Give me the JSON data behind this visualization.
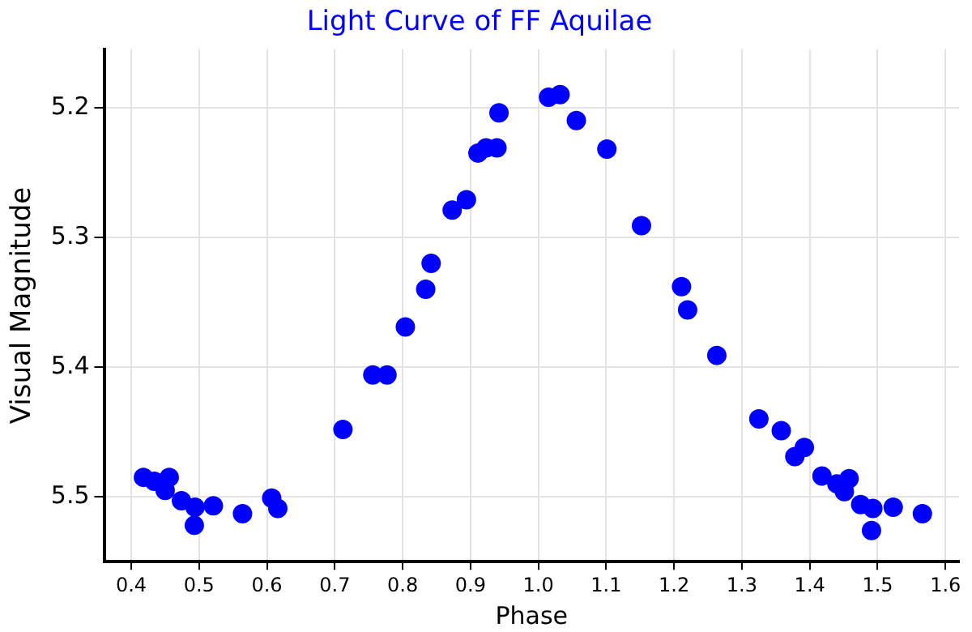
{
  "chart_data": {
    "type": "scatter",
    "title": "Light Curve of FF Aquilae",
    "xlabel": "Phase",
    "ylabel": "Visual Magnitude",
    "x": [
      0.418,
      0.434,
      0.45,
      0.456,
      0.474,
      0.494,
      0.493,
      0.521,
      0.564,
      0.607,
      0.616,
      0.712,
      0.756,
      0.777,
      0.804,
      0.834,
      0.842,
      0.873,
      0.894,
      0.911,
      0.923,
      0.939,
      0.942,
      1.015,
      1.032,
      1.056,
      1.101,
      1.152,
      1.211,
      1.22,
      1.263,
      1.325,
      1.358,
      1.378,
      1.392,
      1.418,
      1.44,
      1.458,
      1.451,
      1.475,
      1.493,
      1.491,
      1.523,
      1.566
    ],
    "series": [
      {
        "color": "#0000ff",
        "values": [
          5.485,
          5.488,
          5.495,
          5.485,
          5.503,
          5.508,
          5.522,
          5.507,
          5.513,
          5.501,
          5.509,
          5.448,
          5.406,
          5.406,
          5.369,
          5.34,
          5.32,
          5.279,
          5.271,
          5.235,
          5.231,
          5.231,
          5.204,
          5.192,
          5.19,
          5.21,
          5.232,
          5.291,
          5.338,
          5.356,
          5.391,
          5.44,
          5.449,
          5.469,
          5.462,
          5.484,
          5.49,
          5.486,
          5.496,
          5.506,
          5.509,
          5.526,
          5.508,
          5.513
        ]
      }
    ],
    "xlim": [
      0.36,
      1.62
    ],
    "ylim": [
      5.55,
      5.155
    ],
    "xticks": [
      0.4,
      0.5,
      0.6,
      0.7,
      0.8,
      0.9,
      {
        "value": 1,
        "label": "1.0"
      },
      1.1,
      1.2,
      1.3,
      1.4,
      1.5,
      1.6
    ],
    "yticks": [
      5.2,
      5.3,
      5.4,
      5.5
    ],
    "grid": true,
    "legend": false,
    "marker": "circle"
  }
}
